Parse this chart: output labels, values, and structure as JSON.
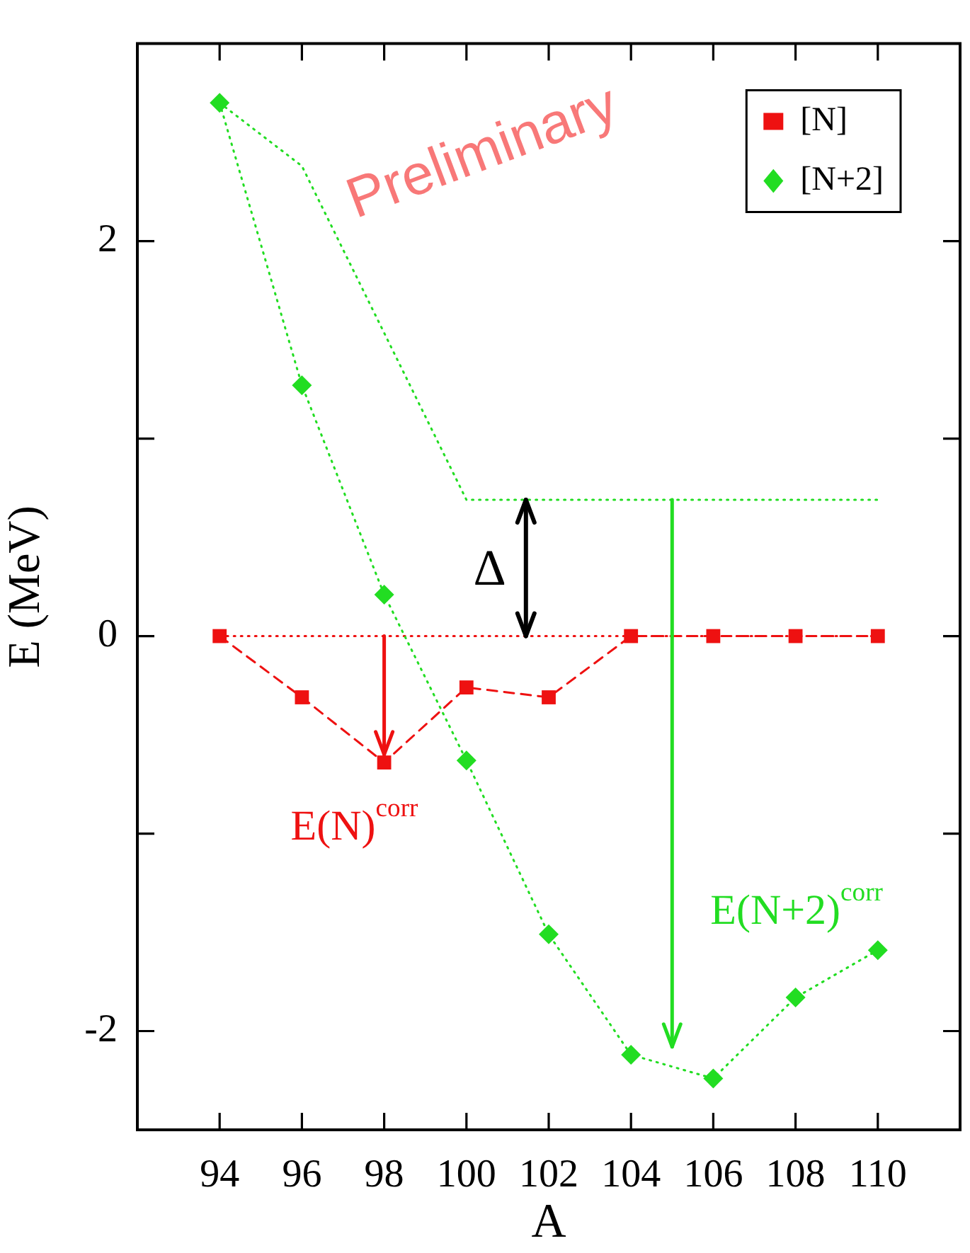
{
  "chart_data": {
    "type": "line",
    "xlabel": "A",
    "ylabel": "E (MeV)",
    "x": [
      94,
      96,
      98,
      100,
      102,
      104,
      106,
      108,
      110
    ],
    "xlim": [
      92,
      112
    ],
    "xticks": [
      94,
      96,
      98,
      100,
      102,
      104,
      106,
      108,
      110
    ],
    "ylim": [
      -2.5,
      3
    ],
    "yticks": [
      -2,
      {
        "value": -1,
        "label": null
      },
      0,
      {
        "value": 1,
        "label": null
      },
      2
    ],
    "legend": "top right",
    "series": [
      {
        "name": "[N]",
        "color": "#ee1111",
        "marker": "square",
        "line_style": "dashed",
        "values": [
          0,
          -0.31,
          -0.64,
          -0.26,
          -0.31,
          0,
          0,
          0,
          0
        ]
      },
      {
        "name": "[N+2]",
        "color": "#22dd22",
        "marker": "diamond",
        "line_style": "dotted",
        "values": [
          2.7,
          1.27,
          0.21,
          -0.63,
          -1.51,
          -2.12,
          -2.24,
          -1.83,
          -1.59
        ]
      },
      {
        "color": "#22dd22",
        "marker": "none",
        "line_style": "dotted",
        "x": [
          94,
          96,
          100,
          110
        ],
        "values": [
          2.7,
          2.38,
          0.69,
          0.69
        ]
      },
      {
        "color": "#ee1111",
        "marker": "none",
        "line_style": "dotted",
        "x": [
          94,
          110
        ],
        "values": [
          0,
          0
        ]
      }
    ],
    "annotations": [
      "Preliminary",
      {
        "text": "E(N)$^{corr}$",
        "x": 98,
        "y": -0.6
      },
      "E(N+2)$^{corr}$",
      "Δ"
    ]
  }
}
